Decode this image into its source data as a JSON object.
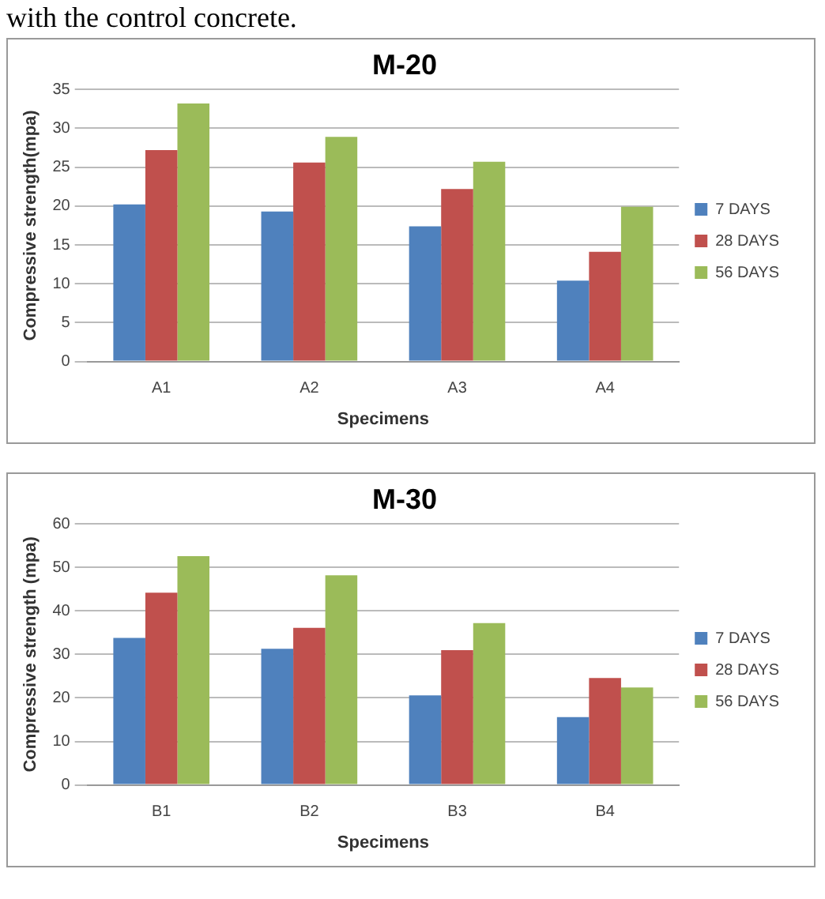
{
  "chart_data": [
    {
      "type": "bar",
      "title": "M-20",
      "xlabel": "Specimens",
      "ylabel": "Compressive strength(mpa)",
      "annotations": [
        "with the control concrete."
      ],
      "categories": [
        "A1",
        "A2",
        "A3",
        "A4"
      ],
      "series": [
        {
          "name": "7 DAYS",
          "color": "#4f81bd",
          "values": [
            20.2,
            19.3,
            17.4,
            10.4
          ]
        },
        {
          "name": "28 DAYS",
          "color": "#c0504d",
          "values": [
            27.2,
            25.6,
            22.2,
            14.1
          ]
        },
        {
          "name": "56 DAYS",
          "color": "#9bbb59",
          "values": [
            33.2,
            28.9,
            25.7,
            19.9
          ]
        }
      ],
      "ylim": [
        0,
        35
      ],
      "yticks": [
        0,
        5,
        10,
        15,
        20,
        25,
        30,
        35
      ],
      "grid": "y",
      "legend": "right"
    },
    {
      "type": "bar",
      "title": "M-30",
      "xlabel": "Specimens",
      "ylabel": "Compressive strength (mpa)",
      "categories": [
        "B1",
        "B2",
        "B3",
        "B4"
      ],
      "series": [
        {
          "name": "7 DAYS",
          "color": "#4f81bd",
          "values": [
            33.8,
            31.3,
            20.6,
            15.6
          ]
        },
        {
          "name": "28 DAYS",
          "color": "#c0504d",
          "values": [
            44.2,
            36.1,
            31,
            24.6
          ]
        },
        {
          "name": "56 DAYS",
          "color": "#9bbb59",
          "values": [
            52.6,
            48.2,
            37.2,
            22.4
          ]
        }
      ],
      "ylim": [
        0,
        60
      ],
      "yticks": [
        0,
        10,
        20,
        30,
        40,
        50,
        60
      ],
      "grid": "y",
      "legend": "right"
    }
  ]
}
